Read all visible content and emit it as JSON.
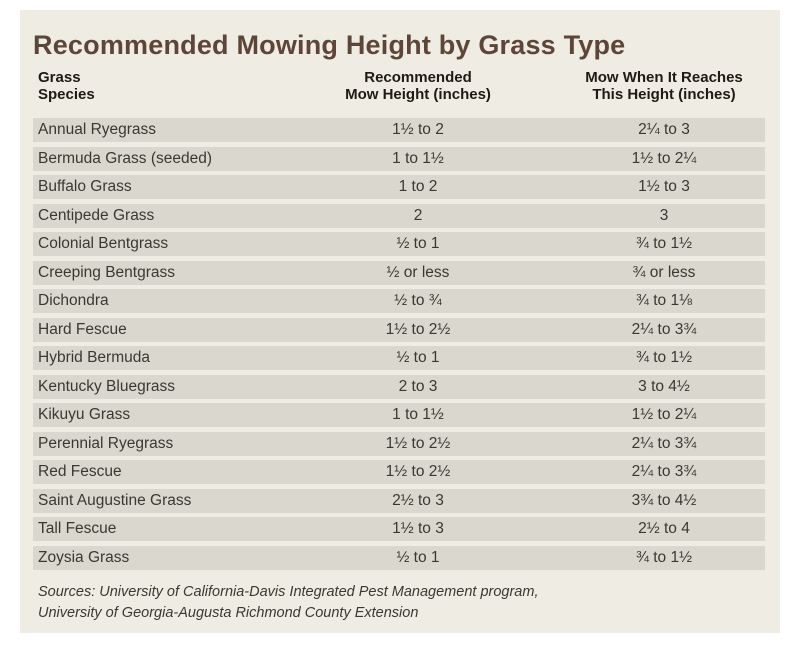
{
  "title": "Recommended Mowing Height by Grass Type",
  "colors": {
    "page_background": "#ffffff",
    "panel_background": "#efece4",
    "row_band": "#dad7ce",
    "title_text": "#5d4637",
    "header_text": "#1f1a14",
    "body_text": "#3b3833"
  },
  "table": {
    "headers": [
      {
        "label": "Grass\nSpecies"
      },
      {
        "label": "Recommended\nMow Height (inches)"
      },
      {
        "label": "Mow When It Reaches\nThis Height (inches)"
      }
    ],
    "rows": [
      {
        "species": "Annual Ryegrass",
        "mow_height": "1½ to 2",
        "reach_height": "2¼ to 3"
      },
      {
        "species": "Bermuda Grass (seeded)",
        "mow_height": "1 to 1½",
        "reach_height": "1½ to 2¼"
      },
      {
        "species": "Buffalo Grass",
        "mow_height": "1 to 2",
        "reach_height": "1½ to 3"
      },
      {
        "species": "Centipede Grass",
        "mow_height": "2",
        "reach_height": "3"
      },
      {
        "species": "Colonial Bentgrass",
        "mow_height": "½ to 1",
        "reach_height": "¾ to 1½"
      },
      {
        "species": "Creeping Bentgrass",
        "mow_height": "½ or less",
        "reach_height": "¾ or less"
      },
      {
        "species": "Dichondra",
        "mow_height": "½ to ¾",
        "reach_height": "¾ to 1⅛"
      },
      {
        "species": "Hard Fescue",
        "mow_height": "1½ to 2½",
        "reach_height": "2¼ to 3¾"
      },
      {
        "species": "Hybrid Bermuda",
        "mow_height": "½ to 1",
        "reach_height": "¾ to 1½"
      },
      {
        "species": "Kentucky Bluegrass",
        "mow_height": "2 to 3",
        "reach_height": "3 to 4½"
      },
      {
        "species": "Kikuyu Grass",
        "mow_height": "1 to 1½",
        "reach_height": "1½  to 2¼"
      },
      {
        "species": "Perennial Ryegrass",
        "mow_height": "1½ to 2½",
        "reach_height": "2¼ to 3¾"
      },
      {
        "species": "Red Fescue",
        "mow_height": "1½ to 2½",
        "reach_height": "2¼ to 3¾"
      },
      {
        "species": "Saint Augustine Grass",
        "mow_height": "2½ to 3",
        "reach_height": "3¾ to 4½"
      },
      {
        "species": "Tall Fescue",
        "mow_height": "1½ to 3",
        "reach_height": "2½ to 4"
      },
      {
        "species": "Zoysia Grass",
        "mow_height": "½ to 1",
        "reach_height": "¾ to 1½"
      }
    ]
  },
  "sources": "Sources: University of California-Davis Integrated Pest Management program,\nUniversity of Georgia-Augusta Richmond County Extension"
}
